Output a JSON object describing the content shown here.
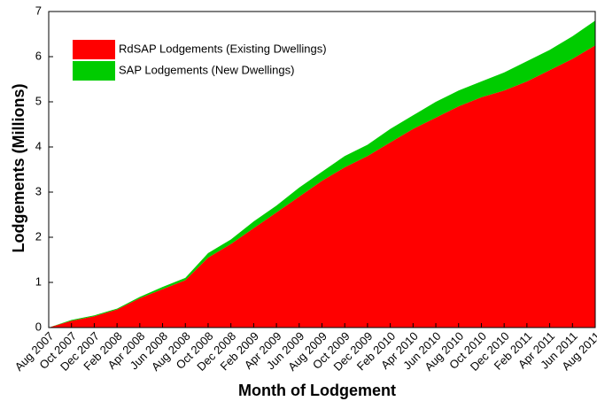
{
  "chart_data": {
    "type": "stacked_area",
    "x_label": "Month of Lodgement",
    "y_label": "Lodgements (Millions)",
    "categories": [
      "Aug 2007",
      "Oct 2007",
      "Dec 2007",
      "Feb 2008",
      "Apr 2008",
      "Jun 2008",
      "Aug 2008",
      "Oct 2008",
      "Dec 2008",
      "Feb 2009",
      "Apr 2009",
      "Jun 2009",
      "Aug 2009",
      "Oct 2009",
      "Dec 2009",
      "Feb 2010",
      "Apr 2010",
      "Jun 2010",
      "Aug 2010",
      "Oct 2010",
      "Dec 2010",
      "Feb 2011",
      "Apr 2011",
      "Jun 2011",
      "Aug 2011"
    ],
    "series": [
      {
        "name": "RdSAP Lodgements (Existing Dwellings)",
        "color": "#ff0000",
        "values": [
          0,
          0.15,
          0.25,
          0.4,
          0.65,
          0.85,
          1.05,
          1.55,
          1.85,
          2.2,
          2.55,
          2.9,
          3.25,
          3.55,
          3.8,
          4.1,
          4.4,
          4.65,
          4.9,
          5.1,
          5.25,
          5.45,
          5.7,
          5.95,
          6.25
        ]
      },
      {
        "name": "SAP Lodgements (New Dwellings)",
        "color": "#00cc00",
        "values": [
          0,
          0.02,
          0.02,
          0.02,
          0.03,
          0.05,
          0.05,
          0.1,
          0.1,
          0.15,
          0.15,
          0.2,
          0.2,
          0.25,
          0.25,
          0.3,
          0.3,
          0.35,
          0.35,
          0.35,
          0.4,
          0.45,
          0.45,
          0.5,
          0.55
        ]
      }
    ],
    "ylim": [
      0,
      7
    ],
    "yticks": [
      0,
      1,
      2,
      3,
      4,
      5,
      6,
      7
    ]
  }
}
